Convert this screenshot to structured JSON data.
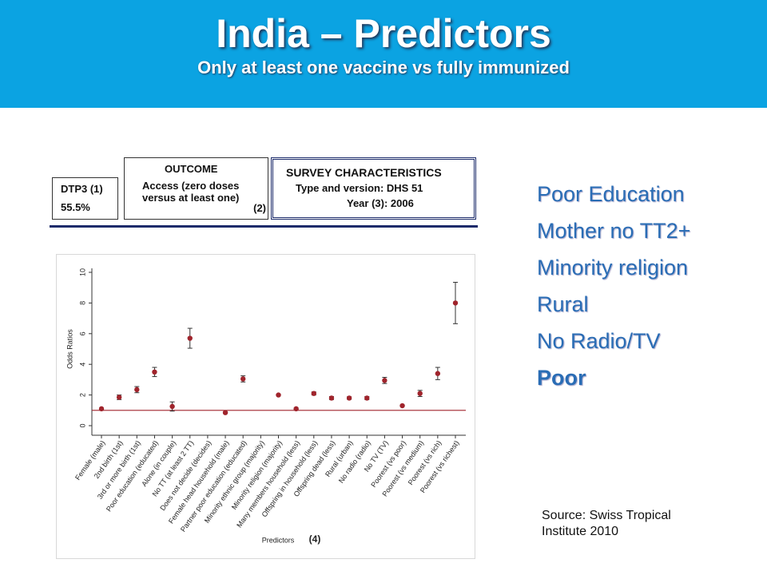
{
  "slide": {
    "title": "India – Predictors",
    "subtitle": "Only at least one vaccine vs fully immunized",
    "dtp3": {
      "label": "DTP3 (1)",
      "value": "55.5%"
    },
    "outcome": {
      "heading": "OUTCOME",
      "lines": [
        "Access (zero doses",
        "versus at least one)"
      ],
      "note": "(2)"
    },
    "survey": {
      "heading": "SURVEY CHARACTERISTICS",
      "type": "Type and version: DHS 51",
      "year": "Year (3): 2006"
    },
    "bullets": [
      "Poor Education",
      "Mother no TT2+",
      "Minority religion",
      "Rural",
      "No Radio/TV",
      "Poor"
    ],
    "source": [
      "Source: Swiss Tropical",
      "Institute 2010"
    ]
  },
  "chart_data": {
    "type": "errorbar",
    "y_label": "Odds Ratios",
    "x_label": "Predictors",
    "x_note": "(4)",
    "categories": [
      "Female (male)",
      "2nd birth (1st)",
      "3rd or more birth (1st)",
      "Poor education (educated)",
      "Alone (in couple)",
      "No TT (at least 2 TT)",
      "Does not decide (decides)",
      "Female head household (male)",
      "Partner poor education (educated)",
      "Minority ethnic group (majority)",
      "Minority religion (majority)",
      "Many members household (less)",
      "Offspring in household (less)",
      "Offspring dead (less)",
      "Rural (urban)",
      "No radio (radio)",
      "No TV (TV)",
      "Poorest (vs poor)",
      "Poorest (vs medium)",
      "Poorest (vs rich)",
      "Poorest (vs richest)"
    ],
    "values": [
      1.1,
      1.85,
      2.35,
      3.5,
      1.25,
      5.7,
      null,
      0.85,
      3.05,
      null,
      2.0,
      1.1,
      2.1,
      1.8,
      1.8,
      1.8,
      2.95,
      1.3,
      2.1,
      3.4,
      8.0
    ],
    "errors": [
      0.05,
      0.15,
      0.2,
      0.3,
      0.3,
      0.65,
      null,
      0.05,
      0.2,
      null,
      0.05,
      0.05,
      0.1,
      0.1,
      0.08,
      0.1,
      0.2,
      0.05,
      0.2,
      0.4,
      1.35
    ],
    "color": "#a0242c",
    "reference_line": 1,
    "ylim": [
      0,
      10
    ],
    "yticks": [
      0,
      2,
      4,
      6,
      8,
      10
    ]
  }
}
